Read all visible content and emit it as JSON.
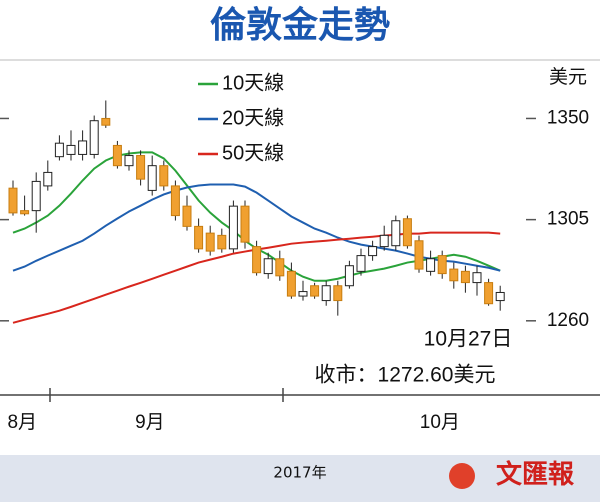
{
  "chart_data": {
    "type": "candlestick",
    "title": "倫敦金走勢",
    "y_unit": "美元",
    "ylim": [
      1227,
      1376
    ],
    "yticks": [
      1260,
      1305,
      1350
    ],
    "xticks": [
      {
        "value": 0.8,
        "label": "8月"
      },
      {
        "value": 11.8,
        "label": "9月"
      },
      {
        "value": 36.8,
        "label": "10月"
      }
    ],
    "x_axis_label": "2017年",
    "annotations": [
      "10月27日",
      "收市：1272.60美元"
    ],
    "source": "文匯報",
    "up_color": "#ffffff",
    "down_color": "#f0a030",
    "candles": {
      "open": [
        1319,
        1309,
        1309,
        1320,
        1333,
        1334,
        1334,
        1334,
        1350,
        1338,
        1329,
        1333.5,
        1318,
        1329,
        1320,
        1311,
        1302,
        1299,
        1298,
        1292,
        1311,
        1293,
        1281,
        1287.6,
        1282,
        1271,
        1275.6,
        1269,
        1275.6,
        1275.6,
        1282,
        1289,
        1293,
        1293.4,
        1305.4,
        1295.6,
        1282,
        1289,
        1283,
        1282,
        1277,
        1277,
        1269
      ],
      "high": [
        1322.4,
        1315.7,
        1326,
        1331.3,
        1342.5,
        1344.7,
        1344.7,
        1351.3,
        1358,
        1340,
        1335.8,
        1335.8,
        1333.5,
        1331.3,
        1322.4,
        1315.7,
        1305.5,
        1302.3,
        1301,
        1313.5,
        1313.5,
        1295.6,
        1290.3,
        1291.2,
        1285.9,
        1277.8,
        1276.9,
        1277.8,
        1277.8,
        1286.7,
        1292.1,
        1295.6,
        1302.3,
        1306.8,
        1306.8,
        1297.9,
        1291.2,
        1291.2,
        1285.9,
        1284.5,
        1284.5,
        1278.7,
        1275.6
      ],
      "low": [
        1306.8,
        1306.8,
        1299.2,
        1317.9,
        1331.3,
        1331.3,
        1331.3,
        1332.2,
        1345.8,
        1327.7,
        1326.8,
        1320.2,
        1315.7,
        1317.9,
        1304.6,
        1300.1,
        1290.3,
        1289,
        1290.3,
        1290.3,
        1292.1,
        1280.1,
        1278.7,
        1277.8,
        1269.8,
        1269,
        1269.8,
        1266.7,
        1262.3,
        1274.3,
        1280.1,
        1286.7,
        1291.2,
        1291.2,
        1292.1,
        1281.4,
        1280.1,
        1278.7,
        1274.3,
        1272.5,
        1271.2,
        1266.7,
        1264.5
      ],
      "close": [
        1308,
        1307.6,
        1322,
        1326,
        1339,
        1338,
        1340,
        1349,
        1347,
        1329,
        1333.5,
        1323,
        1329,
        1320,
        1306.8,
        1302,
        1292,
        1291,
        1292,
        1311,
        1295,
        1281.4,
        1287.6,
        1280,
        1271,
        1273,
        1271,
        1275.6,
        1269,
        1284.5,
        1289,
        1293,
        1298,
        1304.5,
        1293.4,
        1283,
        1287.6,
        1281,
        1277.8,
        1277,
        1281.4,
        1267.6,
        1272.6
      ]
    },
    "series": [
      {
        "name": "10天線",
        "color": "#2aa33a",
        "values": [
          1299.2,
          1301,
          1303.7,
          1306.8,
          1311.2,
          1316.6,
          1322.4,
          1327.7,
          1331.3,
          1333.5,
          1334.4,
          1334.9,
          1334.9,
          1332.2,
          1326.8,
          1320.2,
          1313.5,
          1308.1,
          1303.7,
          1300.1,
          1295.6,
          1292.1,
          1289.4,
          1285.9,
          1282.3,
          1279.6,
          1277.8,
          1277.8,
          1278.7,
          1280.1,
          1281.4,
          1282.3,
          1283.2,
          1284.5,
          1285.9,
          1286.7,
          1287.6,
          1288.5,
          1289.4,
          1288.5,
          1286.7,
          1284.5,
          1282.3
        ]
      },
      {
        "name": "20天線",
        "color": "#1f5fb0",
        "values": [
          1282.3,
          1284.1,
          1286.7,
          1289,
          1291.2,
          1293.4,
          1295.6,
          1298.8,
          1302.3,
          1305.5,
          1308.6,
          1311.2,
          1313.9,
          1316.2,
          1317.9,
          1319.3,
          1320.2,
          1320.6,
          1320.6,
          1320.6,
          1319.7,
          1317,
          1313.5,
          1309.9,
          1306.4,
          1303.7,
          1301,
          1299.2,
          1297,
          1295.2,
          1293.9,
          1293,
          1292.1,
          1291.2,
          1289.9,
          1288.5,
          1287.6,
          1286.7,
          1286.3,
          1285.4,
          1284.5,
          1283.6,
          1282.3
        ]
      },
      {
        "name": "50天線",
        "color": "#d8261d",
        "values": [
          1259.1,
          1260.5,
          1261.8,
          1263.1,
          1264.5,
          1266.2,
          1268,
          1269.8,
          1271.6,
          1273.4,
          1275.2,
          1276.9,
          1278.7,
          1280.5,
          1282.3,
          1284.1,
          1285.9,
          1287.2,
          1288.5,
          1289.9,
          1290.8,
          1291.7,
          1292.5,
          1293.4,
          1294.3,
          1294.8,
          1295.2,
          1295.6,
          1296.1,
          1296.5,
          1297,
          1297.4,
          1297.9,
          1298.3,
          1298.8,
          1298.8,
          1299.2,
          1299.2,
          1299.2,
          1299.2,
          1299.2,
          1299.2,
          1298.8
        ]
      }
    ]
  }
}
